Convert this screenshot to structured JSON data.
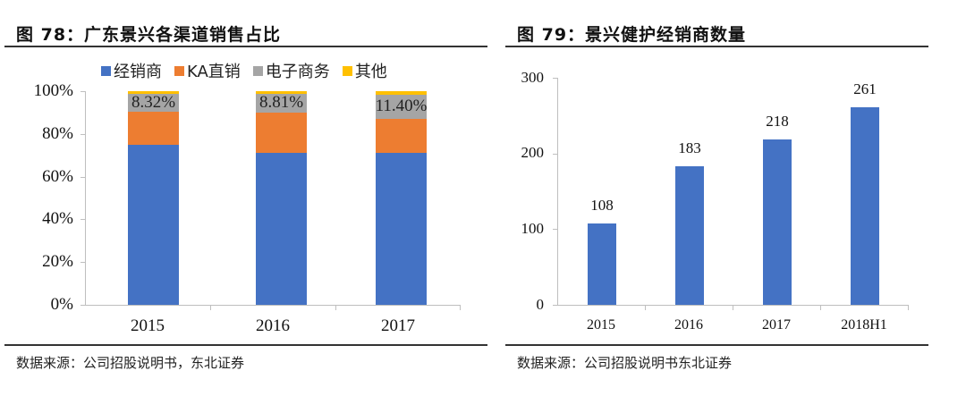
{
  "figures": [
    {
      "title": "图 78：广东景兴各渠道销售占比",
      "source": "数据来源：公司招股说明书，东北证券",
      "legend": [
        {
          "label": "经销商",
          "color": "#4472c4"
        },
        {
          "label": "KA直销",
          "color": "#ed7d31"
        },
        {
          "label": "电子商务",
          "color": "#a5a5a5"
        },
        {
          "label": "其他",
          "color": "#ffc000"
        }
      ],
      "y_ticks": [
        "0%",
        "20%",
        "40%",
        "60%",
        "80%",
        "100%"
      ],
      "x_ticks": [
        "2015",
        "2016",
        "2017"
      ]
    },
    {
      "title": "图 79：景兴健护经销商数量",
      "source": "数据来源：公司招股说明书东北证券",
      "y_ticks": [
        "0",
        "100",
        "200",
        "300"
      ],
      "x_ticks": [
        "2015",
        "2016",
        "2017",
        "2018H1"
      ],
      "bar_labels": [
        "108",
        "183",
        "218",
        "261"
      ]
    }
  ],
  "chart_data": [
    {
      "type": "bar",
      "stacked": true,
      "title": "图 78：广东景兴各渠道销售占比",
      "categories": [
        "2015",
        "2016",
        "2017"
      ],
      "series": [
        {
          "name": "经销商",
          "color": "#4472c4",
          "values": [
            75.0,
            71.0,
            71.0
          ]
        },
        {
          "name": "KA直销",
          "color": "#ed7d31",
          "values": [
            15.5,
            19.0,
            16.0
          ]
        },
        {
          "name": "电子商务",
          "color": "#a5a5a5",
          "values": [
            8.32,
            8.81,
            11.4
          ],
          "data_labels": [
            "8.32%",
            "8.81%",
            "11.40%"
          ]
        },
        {
          "name": "其他",
          "color": "#ffc000",
          "values": [
            1.18,
            1.19,
            1.6
          ]
        }
      ],
      "xlabel": "",
      "ylabel": "",
      "ylim": [
        0,
        100
      ],
      "y_ticks": [
        "0%",
        "20%",
        "40%",
        "60%",
        "80%",
        "100%"
      ],
      "legend_position": "top",
      "grid": false,
      "source": "数据来源：公司招股说明书，东北证券"
    },
    {
      "type": "bar",
      "title": "图 79：景兴健护经销商数量",
      "categories": [
        "2015",
        "2016",
        "2017",
        "2018H1"
      ],
      "values": [
        108,
        183,
        218,
        261
      ],
      "data_labels": [
        "108",
        "183",
        "218",
        "261"
      ],
      "color": "#4472c4",
      "xlabel": "",
      "ylabel": "",
      "ylim": [
        0,
        300
      ],
      "y_ticks": [
        0,
        100,
        200,
        300
      ],
      "grid": false,
      "source": "数据来源：公司招股说明书东北证券"
    }
  ]
}
